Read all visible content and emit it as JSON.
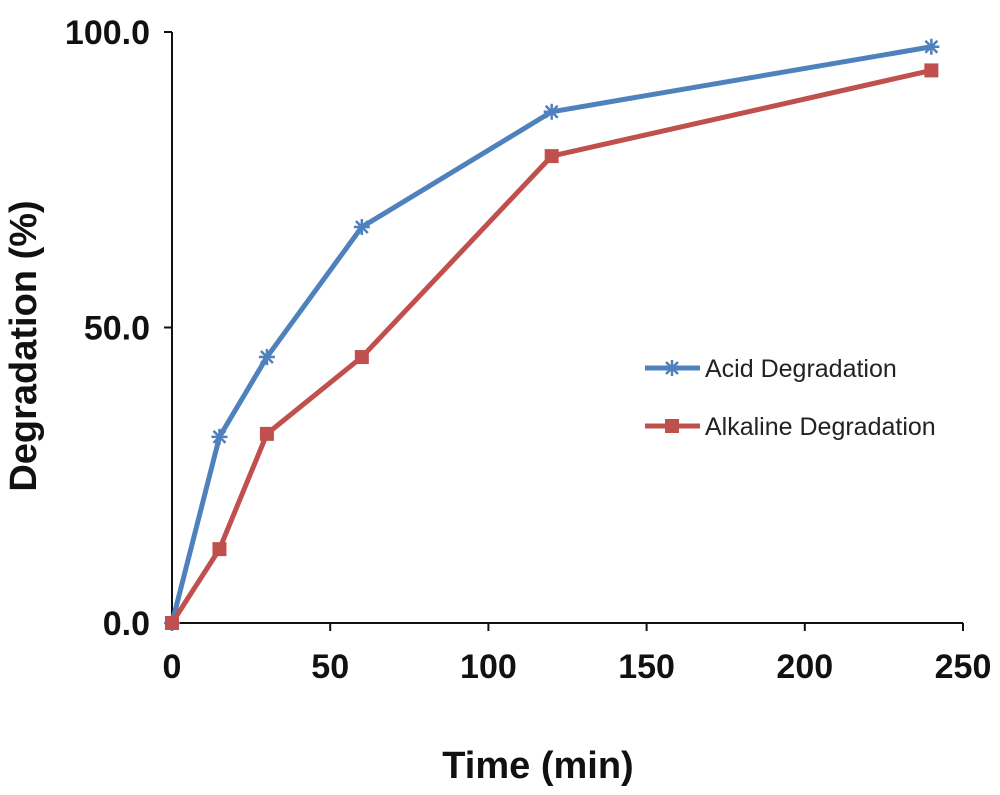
{
  "chart_data": {
    "type": "line",
    "title": "",
    "xlabel": "Time (min)",
    "ylabel": "Degradation (%)",
    "xlim": [
      0,
      250
    ],
    "ylim": [
      0,
      100
    ],
    "x_ticks": [
      0,
      50,
      100,
      150,
      200,
      250
    ],
    "x_tick_labels": [
      "0",
      "50",
      "100",
      "150",
      "200",
      "250"
    ],
    "y_ticks": [
      0,
      50,
      100
    ],
    "y_tick_labels": [
      "0.0",
      "50.0",
      "100.0"
    ],
    "grid": false,
    "legend_position": "right",
    "series": [
      {
        "name": "Acid Degradation",
        "color": "#4f81bd",
        "marker": "star",
        "x": [
          0,
          15,
          30,
          60,
          120,
          240
        ],
        "y": [
          0,
          31.5,
          45,
          67,
          86.5,
          97.5
        ]
      },
      {
        "name": "Alkaline Degradation",
        "color": "#c0504d",
        "marker": "square",
        "x": [
          0,
          15,
          30,
          60,
          120,
          240
        ],
        "y": [
          0,
          12.5,
          32,
          45,
          79,
          93.5
        ]
      }
    ]
  }
}
